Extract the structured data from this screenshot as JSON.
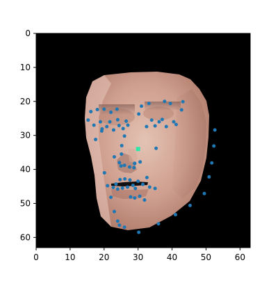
{
  "chart_data": {
    "type": "scatter",
    "title": "",
    "xlabel": "",
    "ylabel": "",
    "xlim": [
      0,
      63
    ],
    "ylim": [
      63,
      0
    ],
    "x_ticks": [
      0,
      10,
      20,
      30,
      40,
      50,
      60
    ],
    "y_ticks": [
      0,
      10,
      20,
      30,
      40,
      50,
      60
    ],
    "x_tick_labels": [
      "0",
      "10",
      "20",
      "30",
      "40",
      "50",
      "60"
    ],
    "y_tick_labels": [
      "0",
      "10",
      "20",
      "30",
      "40",
      "50",
      "60"
    ],
    "background_image": "face-crop-pixelated",
    "colors": {
      "landmark": "#1f77b4",
      "highlight": "#2ee6a8",
      "background": "#000000",
      "skin_base": "#c79a86",
      "skin_light": "#e1bfb0",
      "skin_shadow": "#8b5f55",
      "mouth": "#0f0f12"
    },
    "series": [
      {
        "values": [
          [
            15.3,
            25.5
          ],
          [
            16.1,
            23.0
          ],
          [
            17.0,
            27.0
          ],
          [
            18.0,
            22.4
          ],
          [
            18.9,
            26.0
          ],
          [
            19.4,
            28.1
          ],
          [
            20.0,
            22.3
          ],
          [
            20.8,
            27.4
          ],
          [
            21.7,
            26.0
          ],
          [
            22.0,
            23.2
          ],
          [
            22.8,
            28.4
          ],
          [
            23.8,
            22.3
          ],
          [
            24.0,
            25.4
          ],
          [
            24.4,
            27.1
          ],
          [
            25.6,
            28.0
          ],
          [
            26.5,
            25.8
          ],
          [
            17.5,
            31.2
          ],
          [
            19.3,
            28.7
          ],
          [
            30.2,
            23.7
          ],
          [
            31.0,
            21.4
          ],
          [
            32.5,
            27.4
          ],
          [
            33.2,
            20.6
          ],
          [
            34.0,
            25.5
          ],
          [
            35.0,
            27.2
          ],
          [
            36.2,
            26.0
          ],
          [
            37.1,
            25.3
          ],
          [
            37.8,
            20.0
          ],
          [
            38.3,
            27.4
          ],
          [
            39.5,
            20.6
          ],
          [
            40.5,
            26.0
          ],
          [
            41.2,
            26.8
          ],
          [
            42.8,
            22.5
          ],
          [
            43.2,
            20.1
          ],
          [
            27.0,
            27.0
          ],
          [
            26.0,
            30.2
          ],
          [
            25.2,
            33.0
          ],
          [
            23.0,
            36.3
          ],
          [
            24.5,
            38.0
          ],
          [
            25.0,
            39.0
          ],
          [
            26.0,
            38.8
          ],
          [
            27.5,
            39.3
          ],
          [
            29.0,
            38.2
          ],
          [
            30.6,
            37.8
          ],
          [
            20.1,
            41.0
          ],
          [
            21.0,
            44.8
          ],
          [
            22.7,
            45.3
          ],
          [
            23.5,
            44.3
          ],
          [
            24.0,
            45.8
          ],
          [
            24.7,
            43.0
          ],
          [
            25.4,
            45.5
          ],
          [
            26.1,
            42.8
          ],
          [
            26.9,
            45.2
          ],
          [
            27.6,
            43.1
          ],
          [
            28.5,
            44.7
          ],
          [
            29.2,
            45.6
          ],
          [
            30.0,
            43.5
          ],
          [
            31.4,
            44.4
          ],
          [
            32.6,
            42.4
          ],
          [
            33.4,
            45.2
          ],
          [
            35.0,
            45.6
          ],
          [
            22.0,
            48.2
          ],
          [
            23.0,
            52.4
          ],
          [
            24.0,
            55.2
          ],
          [
            24.5,
            56.4
          ],
          [
            26.0,
            57.0
          ],
          [
            27.8,
            48.1
          ],
          [
            29.0,
            48.4
          ],
          [
            30.5,
            47.9
          ],
          [
            31.9,
            49.0
          ],
          [
            30.2,
            58.5
          ],
          [
            36.0,
            56.0
          ],
          [
            41.0,
            53.3
          ],
          [
            45.3,
            50.6
          ],
          [
            49.5,
            47.1
          ],
          [
            50.9,
            42.2
          ],
          [
            51.7,
            38.1
          ],
          [
            52.3,
            33.1
          ],
          [
            52.6,
            28.4
          ],
          [
            25.1,
            35.5
          ],
          [
            29.0,
            38.3
          ],
          [
            28.8,
            39.5
          ],
          [
            35.3,
            33.8
          ]
        ]
      }
    ],
    "highlight_points": [
      [
        30.0,
        34.0
      ]
    ]
  }
}
